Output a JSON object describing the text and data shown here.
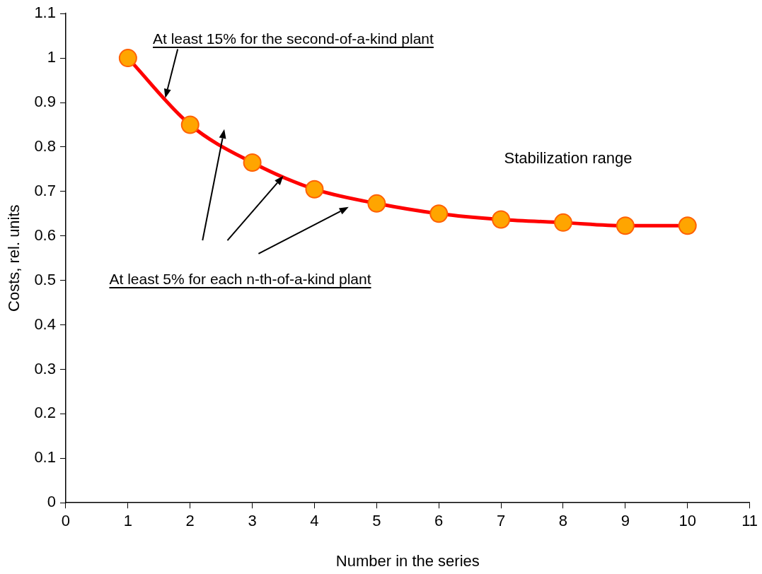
{
  "chart_data": {
    "type": "line",
    "xlabel": "Number in the series",
    "ylabel": "Costs, rel. units",
    "x": [
      1,
      2,
      3,
      4,
      5,
      6,
      7,
      8,
      9,
      10
    ],
    "series": [
      {
        "color": "#ff0000",
        "values": [
          1,
          0.85,
          0.765,
          0.705,
          0.673,
          0.65,
          0.637,
          0.63,
          0.623,
          0.623
        ]
      }
    ],
    "marker": "circle",
    "xlim": [
      0,
      11
    ],
    "xticks": [
      0,
      1,
      2,
      3,
      4,
      5,
      6,
      7,
      8,
      9,
      10,
      11
    ],
    "ylim": [
      0,
      1.1
    ],
    "yticks": [
      0,
      0.1,
      0.2,
      0.3,
      0.4,
      0.5,
      0.6,
      0.7,
      0.8,
      0.9,
      1,
      1.1
    ],
    "annotations": [
      "At least 15% for the second-of-a-kind plant",
      "At least 5% for each n-th-of-a-kind plant",
      "Stabilization range"
    ]
  }
}
